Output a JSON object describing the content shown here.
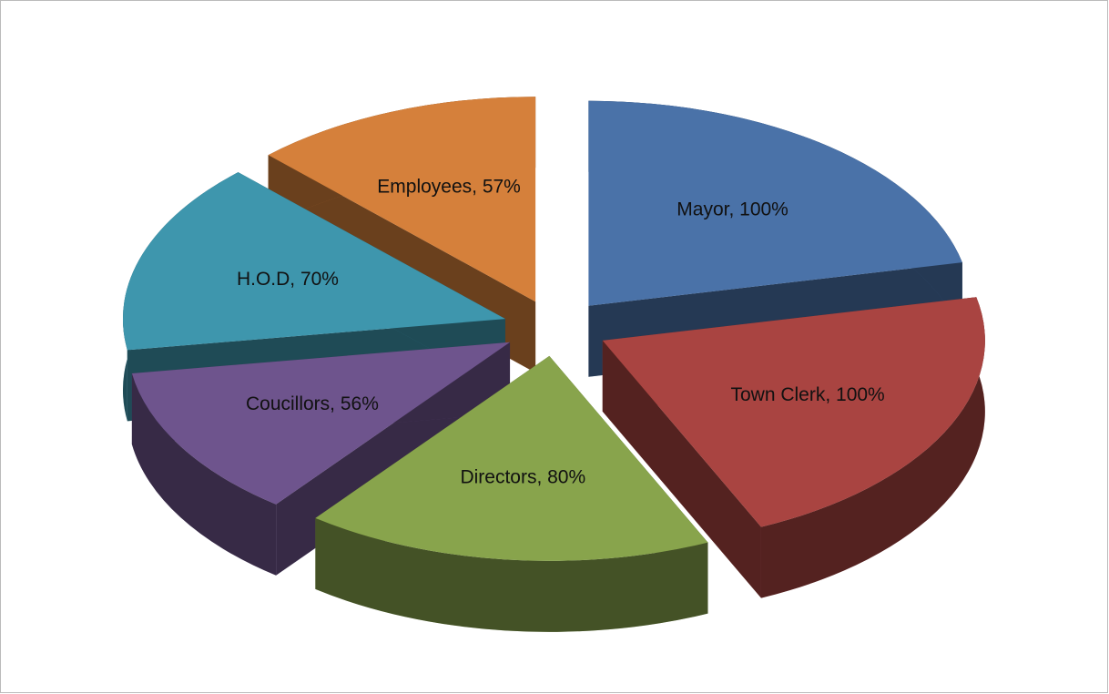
{
  "chart_data": {
    "type": "pie3d",
    "categories": [
      "Mayor",
      "Town Clerk",
      "Directors",
      "Coucillors",
      "H.O.D",
      "Employees"
    ],
    "values": [
      100,
      100,
      80,
      56,
      70,
      57
    ],
    "value_labels": [
      "Mayor, 100%",
      "Town Clerk, 100%",
      "Directors, 80%",
      "Coucillors, 56%",
      "H.O.D, 70%",
      "Employees, 57%"
    ],
    "colors": [
      "#4a72a8",
      "#a94441",
      "#88a44c",
      "#6e548d",
      "#3e96ad",
      "#d5803b"
    ]
  }
}
